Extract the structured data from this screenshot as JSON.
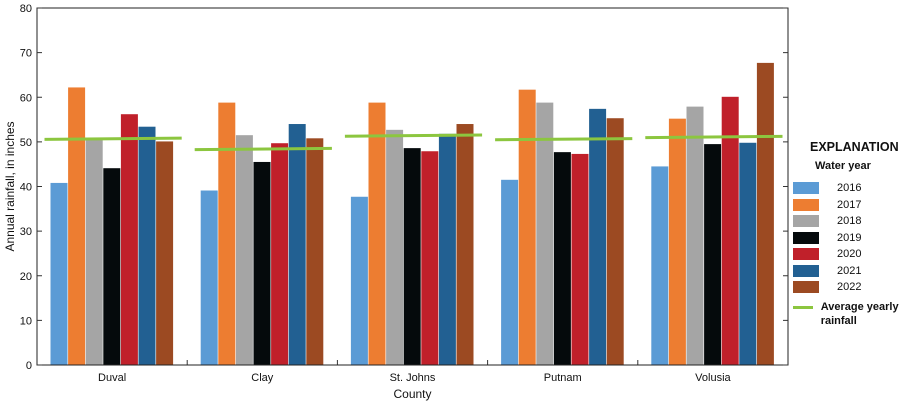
{
  "chart_data": {
    "type": "bar",
    "xlabel": "County",
    "ylabel": "Annual rainfall, in inches",
    "ylim": [
      0,
      80
    ],
    "yticks": [
      0,
      10,
      20,
      30,
      40,
      50,
      60,
      70,
      80
    ],
    "grid": false,
    "legend_placement": "right",
    "categories": [
      "Duval",
      "Clay",
      "St. Johns",
      "Putnam",
      "Volusia"
    ],
    "series": [
      {
        "name": "2016",
        "color": "#5b9bd5",
        "values": [
          40.8,
          39.1,
          37.7,
          41.5,
          44.5
        ]
      },
      {
        "name": "2017",
        "color": "#ed7d31",
        "values": [
          62.2,
          58.8,
          58.8,
          61.7,
          55.2
        ]
      },
      {
        "name": "2018",
        "color": "#a5a5a5",
        "values": [
          50.6,
          51.5,
          52.7,
          58.8,
          57.9
        ]
      },
      {
        "name": "2019",
        "color": "#050a0c",
        "values": [
          44.1,
          45.5,
          48.6,
          47.7,
          49.5
        ]
      },
      {
        "name": "2020",
        "color": "#c0202a",
        "values": [
          56.2,
          49.7,
          47.9,
          47.3,
          60.1
        ]
      },
      {
        "name": "2021",
        "color": "#226092",
        "values": [
          53.4,
          54.0,
          51.8,
          57.4,
          49.8
        ]
      },
      {
        "name": "2022",
        "color": "#9c4a22",
        "values": [
          50.1,
          50.8,
          54.0,
          55.3,
          67.7
        ]
      }
    ],
    "average": {
      "name": "Average yearly rainfall",
      "color": "#8cc63f",
      "values": [
        50.7,
        48.4,
        51.4,
        50.6,
        51.1
      ]
    },
    "legend": {
      "title": "EXPLANATION",
      "subtitle": "Water year"
    }
  }
}
